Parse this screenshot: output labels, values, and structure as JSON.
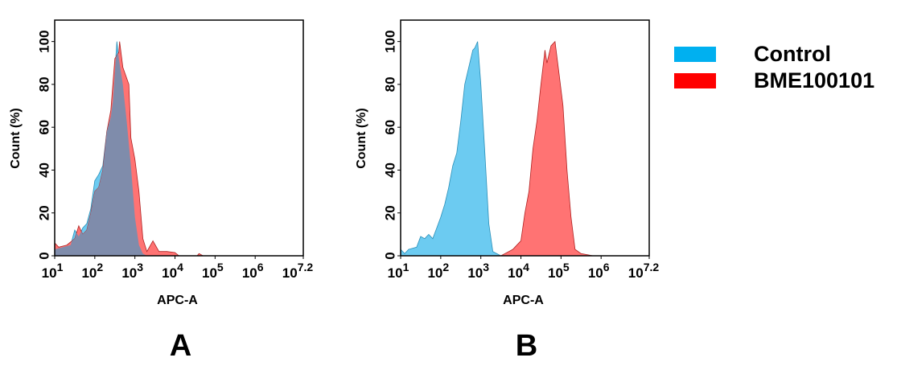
{
  "chart_data": [
    {
      "type": "area",
      "panel_label": "A",
      "xlabel": "APC-A",
      "ylabel": "Count  (%)",
      "x_scale": "log10",
      "xlim_log10": [
        1,
        7.2
      ],
      "ylim": [
        0,
        110
      ],
      "x_tick_labels": [
        {
          "base": "10",
          "exp": "1"
        },
        {
          "base": "10",
          "exp": "2"
        },
        {
          "base": "10",
          "exp": "3"
        },
        {
          "base": "10",
          "exp": "4"
        },
        {
          "base": "10",
          "exp": "5"
        },
        {
          "base": "10",
          "exp": "6"
        },
        {
          "base": "10",
          "exp": "7.2"
        }
      ],
      "y_tick_labels": [
        "0",
        "20",
        "40",
        "60",
        "80",
        "100"
      ],
      "grid": false,
      "series": [
        {
          "name": "Control",
          "color": "#6ccbf1",
          "points_log10x_y": [
            [
              1,
              3
            ],
            [
              1.2,
              4
            ],
            [
              1.4,
              5
            ],
            [
              1.5,
              12
            ],
            [
              1.6,
              9
            ],
            [
              1.7,
              13
            ],
            [
              1.8,
              15
            ],
            [
              1.9,
              22
            ],
            [
              2.0,
              35
            ],
            [
              2.1,
              38
            ],
            [
              2.2,
              42
            ],
            [
              2.3,
              58
            ],
            [
              2.4,
              65
            ],
            [
              2.45,
              72
            ],
            [
              2.55,
              100
            ],
            [
              2.6,
              92
            ],
            [
              2.7,
              80
            ],
            [
              2.8,
              62
            ],
            [
              2.9,
              42
            ],
            [
              3.0,
              18
            ],
            [
              3.1,
              5
            ],
            [
              3.2,
              1
            ],
            [
              3.3,
              0
            ]
          ]
        },
        {
          "name": "BME100101",
          "color": "#ff7373",
          "points_log10x_y": [
            [
              1,
              6
            ],
            [
              1.1,
              4
            ],
            [
              1.3,
              5
            ],
            [
              1.5,
              8
            ],
            [
              1.6,
              14
            ],
            [
              1.7,
              10
            ],
            [
              1.8,
              12
            ],
            [
              1.9,
              20
            ],
            [
              2.0,
              30
            ],
            [
              2.1,
              32
            ],
            [
              2.2,
              40
            ],
            [
              2.3,
              58
            ],
            [
              2.4,
              68
            ],
            [
              2.5,
              92
            ],
            [
              2.6,
              95
            ],
            [
              2.62,
              100
            ],
            [
              2.7,
              88
            ],
            [
              2.85,
              80
            ],
            [
              2.9,
              55
            ],
            [
              3.0,
              45
            ],
            [
              3.1,
              30
            ],
            [
              3.2,
              8
            ],
            [
              3.3,
              2
            ],
            [
              3.45,
              7
            ],
            [
              3.6,
              2
            ],
            [
              3.8,
              2
            ],
            [
              4.0,
              1.5
            ],
            [
              4.1,
              0
            ],
            [
              4.55,
              0
            ],
            [
              4.6,
              1
            ],
            [
              4.7,
              0
            ]
          ]
        }
      ]
    },
    {
      "type": "area",
      "panel_label": "B",
      "xlabel": "APC-A",
      "ylabel": "Count  (%)",
      "x_scale": "log10",
      "xlim_log10": [
        1,
        7.2
      ],
      "ylim": [
        0,
        110
      ],
      "x_tick_labels": [
        {
          "base": "10",
          "exp": "1"
        },
        {
          "base": "10",
          "exp": "2"
        },
        {
          "base": "10",
          "exp": "3"
        },
        {
          "base": "10",
          "exp": "4"
        },
        {
          "base": "10",
          "exp": "5"
        },
        {
          "base": "10",
          "exp": "6"
        },
        {
          "base": "10",
          "exp": "7.2"
        }
      ],
      "y_tick_labels": [
        "0",
        "20",
        "40",
        "60",
        "80",
        "100"
      ],
      "grid": false,
      "series": [
        {
          "name": "Control",
          "color": "#6ccbf1",
          "points_log10x_y": [
            [
              1,
              3
            ],
            [
              1.1,
              1
            ],
            [
              1.2,
              3
            ],
            [
              1.4,
              4
            ],
            [
              1.5,
              9
            ],
            [
              1.6,
              8
            ],
            [
              1.7,
              10
            ],
            [
              1.8,
              8
            ],
            [
              1.9,
              13
            ],
            [
              2.0,
              18
            ],
            [
              2.1,
              24
            ],
            [
              2.2,
              32
            ],
            [
              2.3,
              42
            ],
            [
              2.4,
              48
            ],
            [
              2.5,
              63
            ],
            [
              2.6,
              80
            ],
            [
              2.7,
              88
            ],
            [
              2.8,
              96
            ],
            [
              2.85,
              97
            ],
            [
              2.92,
              100
            ],
            [
              3.0,
              80
            ],
            [
              3.1,
              48
            ],
            [
              3.2,
              15
            ],
            [
              3.3,
              2
            ],
            [
              3.5,
              0
            ]
          ]
        },
        {
          "name": "BME100101",
          "color": "#ff7373",
          "points_log10x_y": [
            [
              3.5,
              0
            ],
            [
              3.6,
              1
            ],
            [
              3.8,
              3
            ],
            [
              3.9,
              5
            ],
            [
              4.0,
              7
            ],
            [
              4.1,
              20
            ],
            [
              4.2,
              30
            ],
            [
              4.3,
              50
            ],
            [
              4.4,
              63
            ],
            [
              4.5,
              80
            ],
            [
              4.6,
              96
            ],
            [
              4.65,
              90
            ],
            [
              4.75,
              98
            ],
            [
              4.85,
              100
            ],
            [
              4.95,
              85
            ],
            [
              5.05,
              70
            ],
            [
              5.15,
              40
            ],
            [
              5.25,
              18
            ],
            [
              5.35,
              3
            ],
            [
              5.5,
              1
            ],
            [
              5.8,
              0
            ]
          ]
        }
      ]
    }
  ],
  "legend": {
    "placement": "right",
    "items": [
      {
        "label": "Control",
        "color": "#00b0f0"
      },
      {
        "label": "BME100101",
        "color": "#ff0000"
      }
    ]
  },
  "overlap_color": "#7f8cab"
}
